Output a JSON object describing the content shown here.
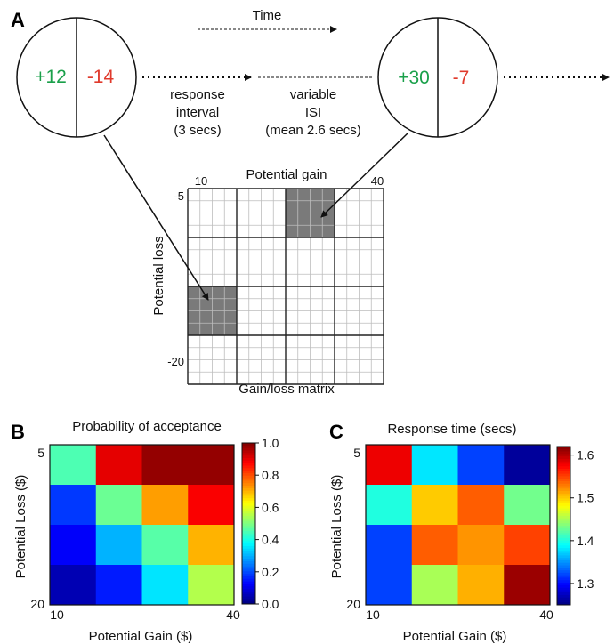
{
  "panel_a": {
    "letter": "A",
    "time_label": "Time",
    "trial1": {
      "gain": "+12",
      "loss": "-14"
    },
    "trial2": {
      "gain": "+30",
      "loss": "-7"
    },
    "response_interval": [
      "response",
      "interval",
      "(3 secs)"
    ],
    "isi": [
      "variable",
      "ISI",
      "(mean 2.6 secs)"
    ],
    "matrix": {
      "title_top": "Potential gain",
      "title_bottom": "Gain/loss matrix",
      "ylabel": "Potential loss",
      "x_min": "10",
      "x_max": "40",
      "y_min": "-5",
      "y_max": "-20",
      "fine_cells": 16,
      "major_blocks": 4,
      "highlight_blocks": [
        {
          "col": 2,
          "row": 0
        },
        {
          "col": 0,
          "row": 2
        }
      ]
    }
  },
  "colors": {
    "gain_green": "#1aa04a",
    "loss_red": "#e03a2c",
    "highlight_gray": "#7a7a7a"
  },
  "chart_data": [
    {
      "type": "heatmap",
      "letter": "B",
      "title": "Probability of acceptance",
      "xlabel": "Potential Gain ($)",
      "ylabel": "Potential Loss ($)",
      "x_ticks": [
        "10",
        "40"
      ],
      "y_ticks": [
        "5",
        "20"
      ],
      "colorbar": {
        "min": 0.0,
        "max": 1.0,
        "ticks": [
          "0.0",
          "0.2",
          "0.4",
          "0.6",
          "0.8",
          "1.0"
        ]
      },
      "values": [
        [
          0.45,
          0.9,
          0.98,
          0.98
        ],
        [
          0.18,
          0.48,
          0.72,
          0.88
        ],
        [
          0.12,
          0.3,
          0.46,
          0.7
        ],
        [
          0.05,
          0.15,
          0.35,
          0.55
        ]
      ]
    },
    {
      "type": "heatmap",
      "letter": "C",
      "title": "Response time (secs)",
      "xlabel": "Potential Gain ($)",
      "ylabel": "Potential Loss ($)",
      "x_ticks": [
        "10",
        "40"
      ],
      "y_ticks": [
        "5",
        "20"
      ],
      "colorbar": {
        "min": 1.25,
        "max": 1.62,
        "ticks": [
          "1.6",
          "1.5",
          "1.4",
          "1.3"
        ]
      },
      "values": [
        [
          1.58,
          1.38,
          1.32,
          1.26
        ],
        [
          1.4,
          1.5,
          1.54,
          1.43
        ],
        [
          1.32,
          1.54,
          1.52,
          1.55
        ],
        [
          1.32,
          1.45,
          1.51,
          1.61
        ]
      ]
    }
  ]
}
